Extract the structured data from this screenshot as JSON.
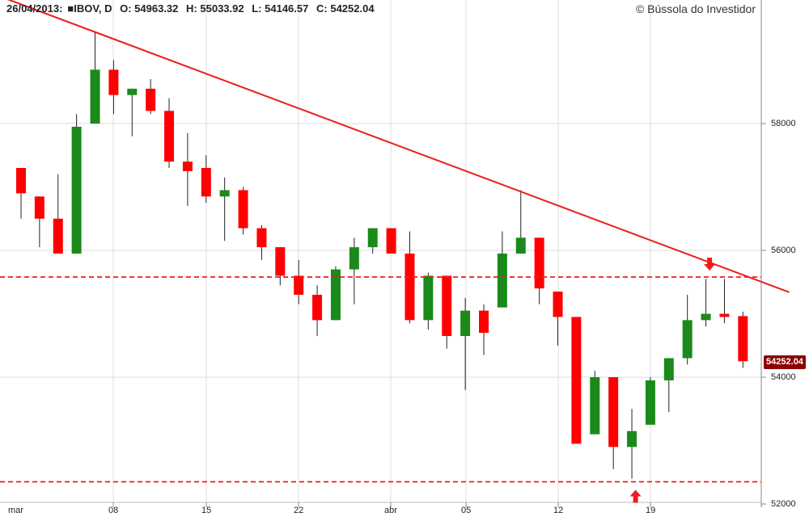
{
  "header": {
    "date": "26/04/2013:",
    "symbol_marker": "■",
    "symbol": "IBOV, D",
    "open_label": "O:",
    "open": "54963.32",
    "high_label": "H:",
    "high": "55033.92",
    "low_label": "L:",
    "low": "54146.57",
    "close_label": "C:",
    "close": "54252.04"
  },
  "copyright": "© Bússola do Investidor",
  "price_tag": "54252.04",
  "colors": {
    "up": "#1a8a1a",
    "down": "#ff0000",
    "trendline": "#ee1c1c",
    "grid": "#dddddd",
    "price_tag": "#8b0000"
  },
  "chart_data": {
    "type": "candlestick",
    "y_ticks": [
      "52000",
      "54000",
      "56000",
      "58000"
    ],
    "ylim": [
      52000,
      60000
    ],
    "x_ticks": [
      "mar",
      "08",
      "15",
      "22",
      "abr",
      "05",
      "12",
      "19"
    ],
    "candles": [
      {
        "o": 57300,
        "h": 57300,
        "l": 56500,
        "c": 56900
      },
      {
        "o": 56850,
        "h": 56850,
        "l": 56050,
        "c": 56500
      },
      {
        "o": 56500,
        "h": 57200,
        "l": 55950,
        "c": 55950
      },
      {
        "o": 55950,
        "h": 58150,
        "l": 55950,
        "c": 57950
      },
      {
        "o": 58000,
        "h": 59450,
        "l": 58000,
        "c": 58850
      },
      {
        "o": 58850,
        "h": 59000,
        "l": 58150,
        "c": 58450
      },
      {
        "o": 58450,
        "h": 58550,
        "l": 57800,
        "c": 58550
      },
      {
        "o": 58550,
        "h": 58700,
        "l": 58150,
        "c": 58200
      },
      {
        "o": 58200,
        "h": 58400,
        "l": 57300,
        "c": 57400
      },
      {
        "o": 57400,
        "h": 57850,
        "l": 56700,
        "c": 57250
      },
      {
        "o": 57300,
        "h": 57500,
        "l": 56750,
        "c": 56850
      },
      {
        "o": 56850,
        "h": 57150,
        "l": 56150,
        "c": 56950
      },
      {
        "o": 56950,
        "h": 57000,
        "l": 56250,
        "c": 56350
      },
      {
        "o": 56350,
        "h": 56400,
        "l": 55850,
        "c": 56050
      },
      {
        "o": 56050,
        "h": 56050,
        "l": 55450,
        "c": 55600
      },
      {
        "o": 55600,
        "h": 55850,
        "l": 55150,
        "c": 55300
      },
      {
        "o": 55300,
        "h": 55450,
        "l": 54650,
        "c": 54900
      },
      {
        "o": 54900,
        "h": 55750,
        "l": 54900,
        "c": 55700
      },
      {
        "o": 55700,
        "h": 56200,
        "l": 55150,
        "c": 56050
      },
      {
        "o": 56050,
        "h": 56350,
        "l": 55950,
        "c": 56350
      },
      {
        "o": 56350,
        "h": 56350,
        "l": 55950,
        "c": 55950
      },
      {
        "o": 55950,
        "h": 56300,
        "l": 54850,
        "c": 54900
      },
      {
        "o": 54900,
        "h": 55650,
        "l": 54750,
        "c": 55600
      },
      {
        "o": 55600,
        "h": 55600,
        "l": 54450,
        "c": 54650
      },
      {
        "o": 54650,
        "h": 55250,
        "l": 53800,
        "c": 55050
      },
      {
        "o": 55050,
        "h": 55150,
        "l": 54350,
        "c": 54700
      },
      {
        "o": 55100,
        "h": 56300,
        "l": 55100,
        "c": 55950
      },
      {
        "o": 55950,
        "h": 56950,
        "l": 55950,
        "c": 56200
      },
      {
        "o": 56200,
        "h": 56200,
        "l": 55150,
        "c": 55400
      },
      {
        "o": 55350,
        "h": 55350,
        "l": 54500,
        "c": 54950
      },
      {
        "o": 54950,
        "h": 54950,
        "l": 52950,
        "c": 52950
      },
      {
        "o": 53100,
        "h": 54100,
        "l": 53100,
        "c": 54000
      },
      {
        "o": 54000,
        "h": 54000,
        "l": 52550,
        "c": 52900
      },
      {
        "o": 52900,
        "h": 53500,
        "l": 52400,
        "c": 53150
      },
      {
        "o": 53250,
        "h": 54000,
        "l": 53250,
        "c": 53950
      },
      {
        "o": 53950,
        "h": 54300,
        "l": 53450,
        "c": 54300
      },
      {
        "o": 54300,
        "h": 55300,
        "l": 54200,
        "c": 54900
      },
      {
        "o": 54900,
        "h": 55550,
        "l": 54800,
        "c": 55000
      },
      {
        "o": 55000,
        "h": 55550,
        "l": 54850,
        "c": 54950
      },
      {
        "o": 54963.32,
        "h": 55033.92,
        "l": 54146.57,
        "c": 54252.04
      }
    ],
    "trendline": [
      {
        "i": -2,
        "v": 60100
      },
      {
        "i": 41.5,
        "v": 55340
      }
    ],
    "support": 52350,
    "resistance": 55580,
    "markers": [
      {
        "i": 37.2,
        "v": 55580,
        "dir": "down"
      },
      {
        "i": 33.2,
        "v": 52350,
        "dir": "up"
      }
    ]
  }
}
